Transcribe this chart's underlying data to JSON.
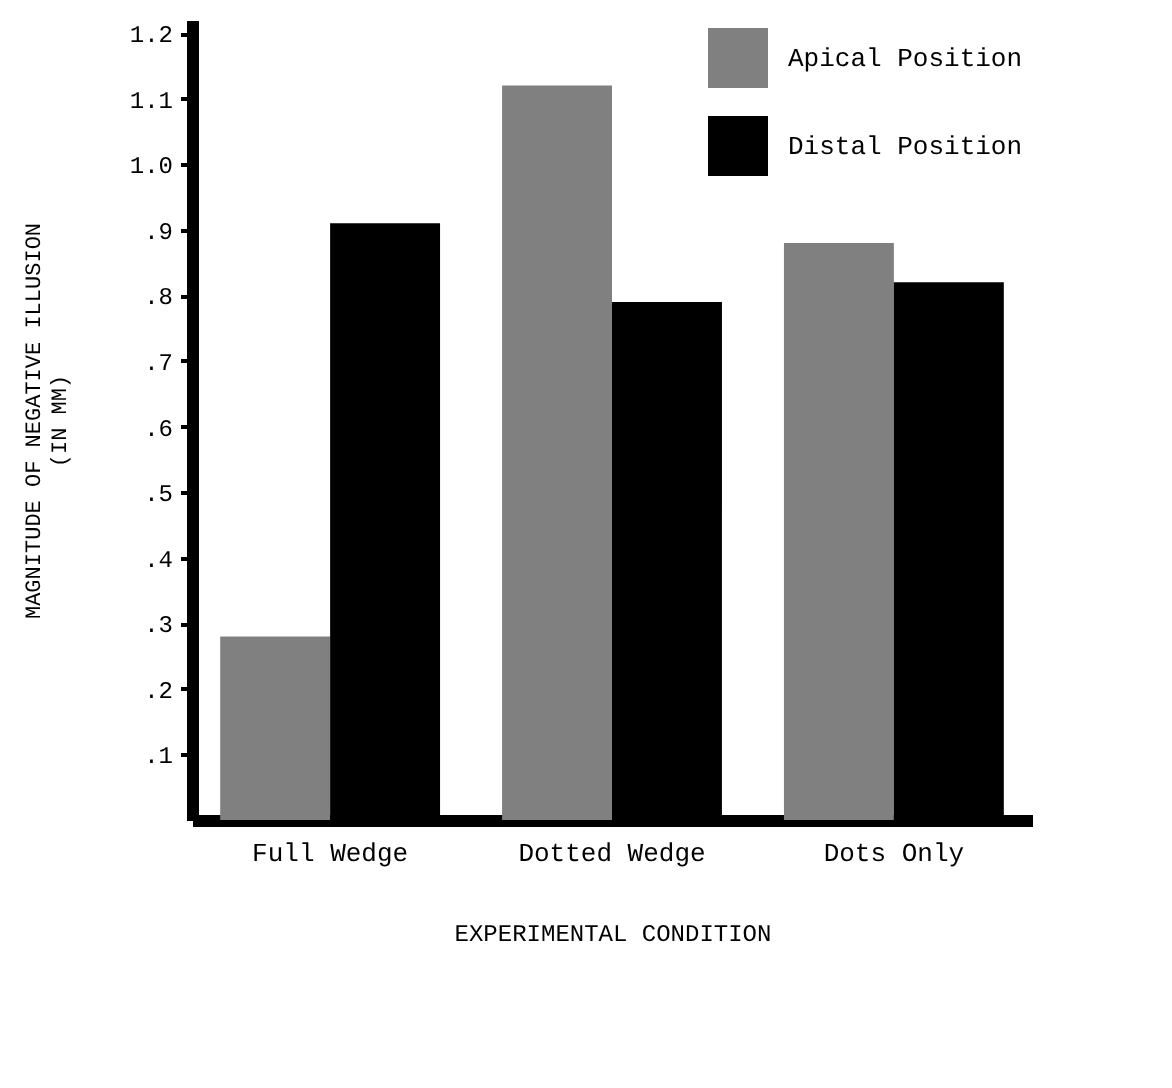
{
  "chart_data": {
    "type": "bar",
    "xlabel": "EXPERIMENTAL CONDITION",
    "ylabel": "MAGNITUDE OF NEGATIVE ILLUSION\n(IN MM)",
    "categories": [
      "Full Wedge",
      "Dotted Wedge",
      "Dots Only"
    ],
    "series": [
      {
        "name": "Apical Position",
        "color": "#808080",
        "values": [
          0.28,
          1.12,
          0.88
        ]
      },
      {
        "name": "Distal Position",
        "color": "#000000",
        "values": [
          0.91,
          0.79,
          0.82
        ]
      }
    ],
    "ylim": [
      0,
      1.22
    ],
    "yticks": [
      {
        "value": 0.1,
        "label": ".1"
      },
      {
        "value": 0.2,
        "label": ".2"
      },
      {
        "value": 0.3,
        "label": ".3"
      },
      {
        "value": 0.4,
        "label": ".4"
      },
      {
        "value": 0.5,
        "label": ".5"
      },
      {
        "value": 0.6,
        "label": ".6"
      },
      {
        "value": 0.7,
        "label": ".7"
      },
      {
        "value": 0.8,
        "label": ".8"
      },
      {
        "value": 0.9,
        "label": ".9"
      },
      {
        "value": 1.0,
        "label": "1.0"
      },
      {
        "value": 1.1,
        "label": "1.1"
      },
      {
        "value": 1.2,
        "label": "1.2"
      }
    ],
    "grid": false,
    "legend": "top right"
  }
}
